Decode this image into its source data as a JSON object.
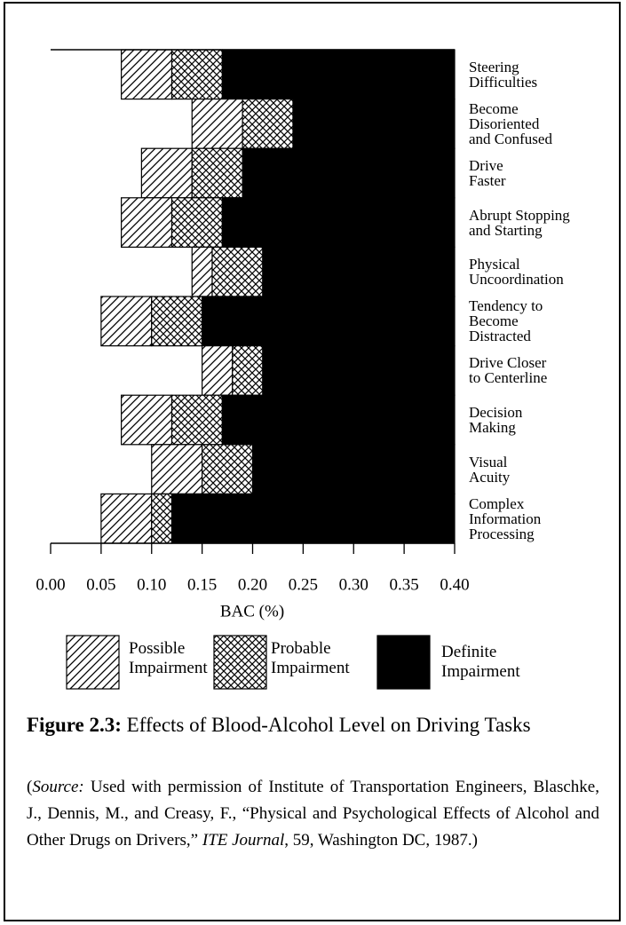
{
  "chart_data": {
    "type": "range_bar",
    "categories": [
      "Steering\nDifficulties",
      "Become\nDisoriented\nand Confused",
      "Drive\nFaster",
      "Abrupt Stopping\nand Starting",
      "Physical\nUncoordination",
      "Tendency to\nBecome\nDistracted",
      "Drive Closer\nto Centerline",
      "Decision\nMaking",
      "Visual\nAcuity",
      "Complex\nInformation\nProcessing"
    ],
    "series": [
      {
        "name": "Possible\nImpairment",
        "color": "hatch",
        "values": [
          0.07,
          0.14,
          0.09,
          0.07,
          0.14,
          0.05,
          0.15,
          0.07,
          0.1,
          0.05
        ]
      },
      {
        "name": "Probable\nImpairment",
        "color": "crosshatch",
        "values": [
          0.12,
          0.19,
          0.14,
          0.12,
          0.16,
          0.1,
          0.18,
          0.12,
          0.15,
          0.1
        ]
      },
      {
        "name": "Definite\nImpairment",
        "color": "#000000",
        "values": [
          0.17,
          0.24,
          0.19,
          0.17,
          0.21,
          0.15,
          0.21,
          0.17,
          0.2,
          0.12
        ]
      }
    ],
    "xlim": [
      0,
      0.4
    ],
    "xticks": [
      {
        "value": 0,
        "label": "0.00"
      },
      0.05,
      {
        "value": 0.1,
        "label": "0.10"
      },
      0.15,
      {
        "value": 0.2,
        "label": "0.20"
      },
      0.25,
      {
        "value": 0.3,
        "label": "0.30"
      },
      0.35,
      {
        "value": 0.4,
        "label": "0.40"
      }
    ],
    "xlabel": "BAC (%)"
  },
  "caption": {
    "label": "Figure 2.3:",
    "text": "Effects of Blood-Alcohol Level on Driving Tasks"
  },
  "source": [
    {
      "text": "(",
      "italic": false
    },
    {
      "text": "Source:",
      "italic": true
    },
    {
      "text": " Used with permission of Institute of Transportation Engineers, Blaschke, J., Dennis, M., and Creasy, F., “Physical and Psychological Effects of Alcohol and Other Drugs on Drivers,” ",
      "italic": false
    },
    {
      "text": "ITE Journal",
      "italic": true
    },
    {
      "text": ", 59, Washington DC, 1987.)",
      "italic": false
    }
  ]
}
